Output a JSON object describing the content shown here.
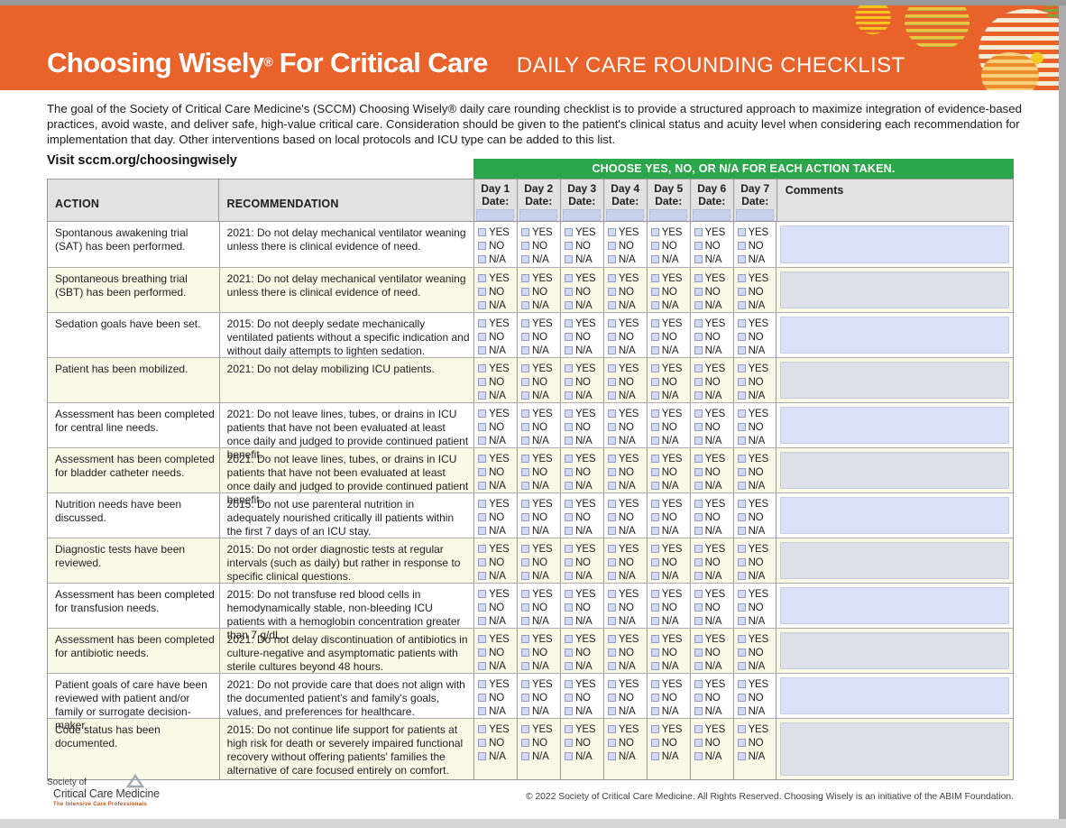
{
  "page": {
    "title_main": "Choosing Wisely",
    "title_reg": "®",
    "title_suffix": "For Critical Care",
    "title_sub": "DAILY CARE ROUNDING CHECKLIST",
    "intro": "The goal of the Society of Critical Care Medicine's (SCCM) Choosing Wisely® daily care rounding checklist is to provide a structured approach to maximize integration of evidence-based practices, avoid waste, and deliver safe, high-value critical care. Consideration should be given to the patient's clinical status and acuity level when considering each recommendation for implementation that day. Other interventions based on local protocols and ICU type can be added to this list.",
    "visit": "Visit sccm.org/choosingwisely",
    "banner": "CHOOSE YES, NO, OR N/A FOR EACH ACTION TAKEN."
  },
  "table": {
    "col_action": "ACTION",
    "col_recommendation": "RECOMMENDATION",
    "col_comments": "Comments",
    "date_label": "Date:",
    "days": [
      "Day 1",
      "Day 2",
      "Day 3",
      "Day 4",
      "Day 5",
      "Day 6",
      "Day 7"
    ],
    "options": [
      "YES",
      "NO",
      "N/A"
    ],
    "rows": [
      {
        "action": "Spontanous awakening trial (SAT) has been performed.",
        "recommendation": "2021: Do not delay mechanical ventilator weaning unless there is clinical evidence of need."
      },
      {
        "action": "Spontaneous breathing trial (SBT) has been performed.",
        "recommendation": "2021: Do not delay mechanical ventilator weaning unless there is clinical evidence of need."
      },
      {
        "action": "Sedation goals have been set.",
        "recommendation": "2015: Do not deeply sedate mechanically ventilated patients without a specific indication and without daily attempts to lighten sedation."
      },
      {
        "action": "Patient has been mobilized.",
        "recommendation": "2021: Do not delay mobilizing ICU patients."
      },
      {
        "action": "Assessment has been completed for central line needs.",
        "recommendation": "2021: Do not leave lines, tubes, or drains in ICU patients that have not been evaluated at least once daily and judged to provide continued patient benefit."
      },
      {
        "action": "Assessment has been completed for bladder catheter needs.",
        "recommendation": "2021: Do not leave lines, tubes, or drains in ICU patients that have not been evaluated at least once daily and judged to provide continued patient benefit."
      },
      {
        "action": "Nutrition needs have been discussed.",
        "recommendation": "2015: Do not use parenteral nutrition in adequately nourished critically ill patients within the first 7 days of an ICU stay."
      },
      {
        "action": "Diagnostic tests have been reviewed.",
        "recommendation": "2015: Do not order diagnostic tests at regular intervals (such as daily) but rather in response to specific clinical questions."
      },
      {
        "action": "Assessment has been completed for transfusion needs.",
        "recommendation": "2015: Do not transfuse red blood cells in hemodynamically stable, non-bleeding ICU patients with a hemoglobin concentration greater than 7 g/dL."
      },
      {
        "action": "Assessment has been completed for antibiotic needs.",
        "recommendation": "2021: Do not delay discontinuation of antibiotics in culture-negative and asymptomatic patients with sterile cultures beyond 48 hours."
      },
      {
        "action": "Patient goals of care have been reviewed with patient and/or family or surrogate decision-maker.",
        "recommendation": "2021: Do not provide care that does not align with the documented patient's and family's goals, values, and preferences for healthcare."
      },
      {
        "action": "Code status has been documented.",
        "recommendation": "2015: Do not continue life support for patients at high risk for death or severely impaired functional recovery without offering patients' families the alternative of care focused entirely on comfort."
      }
    ]
  },
  "footer": {
    "logo_line1": "Society of",
    "logo_line2": "Critical Care Medicine",
    "logo_tagline": "The Intensive Care Professionals",
    "copyright": "© 2022 Society of Critical Care Medicine. All Rights Reserved. Choosing Wisely is an initiative of the ABIM Foundation."
  },
  "colors": {
    "brand_orange": "#E9622A",
    "accent_green": "#2BA64A",
    "row_cream": "#F9F9E6",
    "field_blue": "#C7D1EC",
    "comment_lavender": "#DBE1F8",
    "comment_gray": "#DEE0E9"
  }
}
